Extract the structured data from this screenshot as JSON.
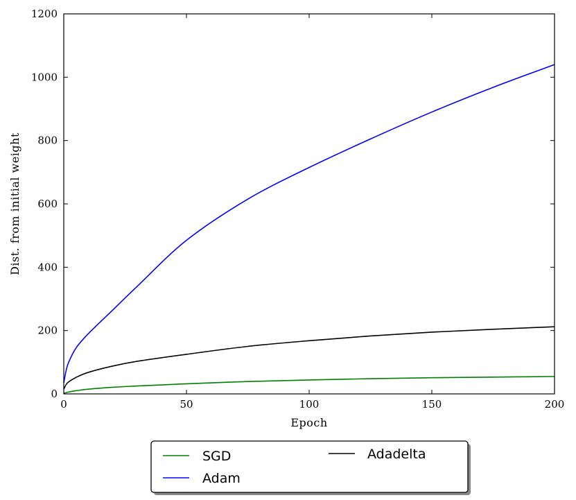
{
  "chart_data": {
    "type": "line",
    "xlabel": "Epoch",
    "ylabel": "Dist. from initial weight",
    "xlim": [
      0,
      200
    ],
    "ylim": [
      0,
      1200
    ],
    "xticks": [
      0,
      50,
      100,
      150,
      200
    ],
    "yticks": [
      0,
      200,
      400,
      600,
      800,
      1000,
      1200
    ],
    "grid": false,
    "legend_placement": "below",
    "series": [
      {
        "name": "SGD",
        "color": "#008000",
        "x": [
          0,
          2,
          5,
          10,
          20,
          30,
          50,
          75,
          100,
          125,
          150,
          175,
          200
        ],
        "y": [
          2,
          6,
          10,
          15,
          21,
          25,
          32,
          39,
          44,
          48,
          51,
          53,
          55
        ]
      },
      {
        "name": "Adam",
        "color": "#0000ff",
        "x": [
          0,
          1,
          2,
          5,
          10,
          20,
          30,
          50,
          75,
          100,
          125,
          150,
          175,
          200
        ],
        "y": [
          35,
          75,
          100,
          145,
          190,
          265,
          340,
          485,
          615,
          715,
          805,
          890,
          968,
          1040
        ]
      },
      {
        "name": "Adadelta",
        "color": "#000000",
        "x": [
          0,
          1,
          2,
          5,
          10,
          20,
          30,
          50,
          75,
          100,
          125,
          150,
          175,
          200
        ],
        "y": [
          15,
          30,
          38,
          52,
          68,
          88,
          103,
          125,
          150,
          168,
          183,
          195,
          204,
          212
        ]
      }
    ]
  }
}
